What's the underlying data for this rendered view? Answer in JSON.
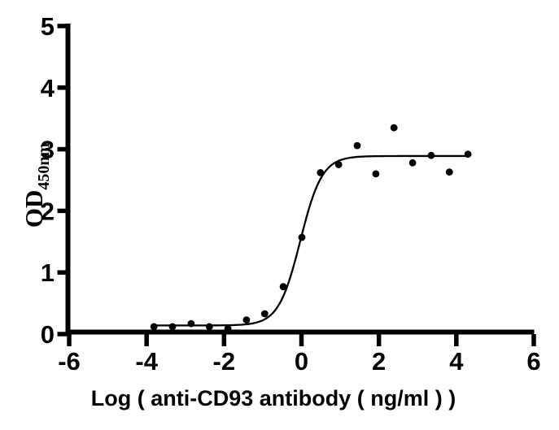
{
  "chart_data": {
    "type": "scatter",
    "title": "",
    "xlabel": "Log ( anti-CD93 antibody ( ng/ml )  )",
    "ylabel": "OD",
    "ylabel_subscript": "450nm",
    "xlim": [
      -6,
      6
    ],
    "ylim": [
      0,
      5
    ],
    "x_ticks": [
      "-6",
      "-4",
      "-2",
      "0",
      "2",
      "4",
      "6"
    ],
    "x_tick_values": [
      -6,
      -4,
      -2,
      0,
      2,
      4,
      6
    ],
    "y_ticks": [
      "0",
      "1",
      "2",
      "3",
      "4",
      "5"
    ],
    "y_tick_values": [
      0,
      1,
      2,
      3,
      4,
      5
    ],
    "grid": false,
    "legend": "none",
    "axis_color": "#000000",
    "marker_color": "#000000",
    "curve_color": "#000000",
    "points": [
      {
        "x": -3.81,
        "y": 0.12
      },
      {
        "x": -3.33,
        "y": 0.12
      },
      {
        "x": -2.85,
        "y": 0.17
      },
      {
        "x": -2.38,
        "y": 0.12
      },
      {
        "x": -1.9,
        "y": 0.09
      },
      {
        "x": -1.42,
        "y": 0.23
      },
      {
        "x": -0.95,
        "y": 0.33
      },
      {
        "x": -0.47,
        "y": 0.77
      },
      {
        "x": 0.01,
        "y": 1.57
      },
      {
        "x": 0.49,
        "y": 2.62
      },
      {
        "x": 0.96,
        "y": 2.75
      },
      {
        "x": 1.44,
        "y": 3.06
      },
      {
        "x": 1.92,
        "y": 2.6
      },
      {
        "x": 2.39,
        "y": 3.35
      },
      {
        "x": 2.87,
        "y": 2.78
      },
      {
        "x": 3.35,
        "y": 2.9
      },
      {
        "x": 3.82,
        "y": 2.63
      },
      {
        "x": 4.3,
        "y": 2.92
      }
    ],
    "fit_curve": {
      "model": "4PL",
      "bottom": 0.14,
      "top": 2.89,
      "log_ec50": -0.03,
      "hill_slope": 1.55,
      "x_start": -3.81,
      "x_end": 4.3
    }
  }
}
